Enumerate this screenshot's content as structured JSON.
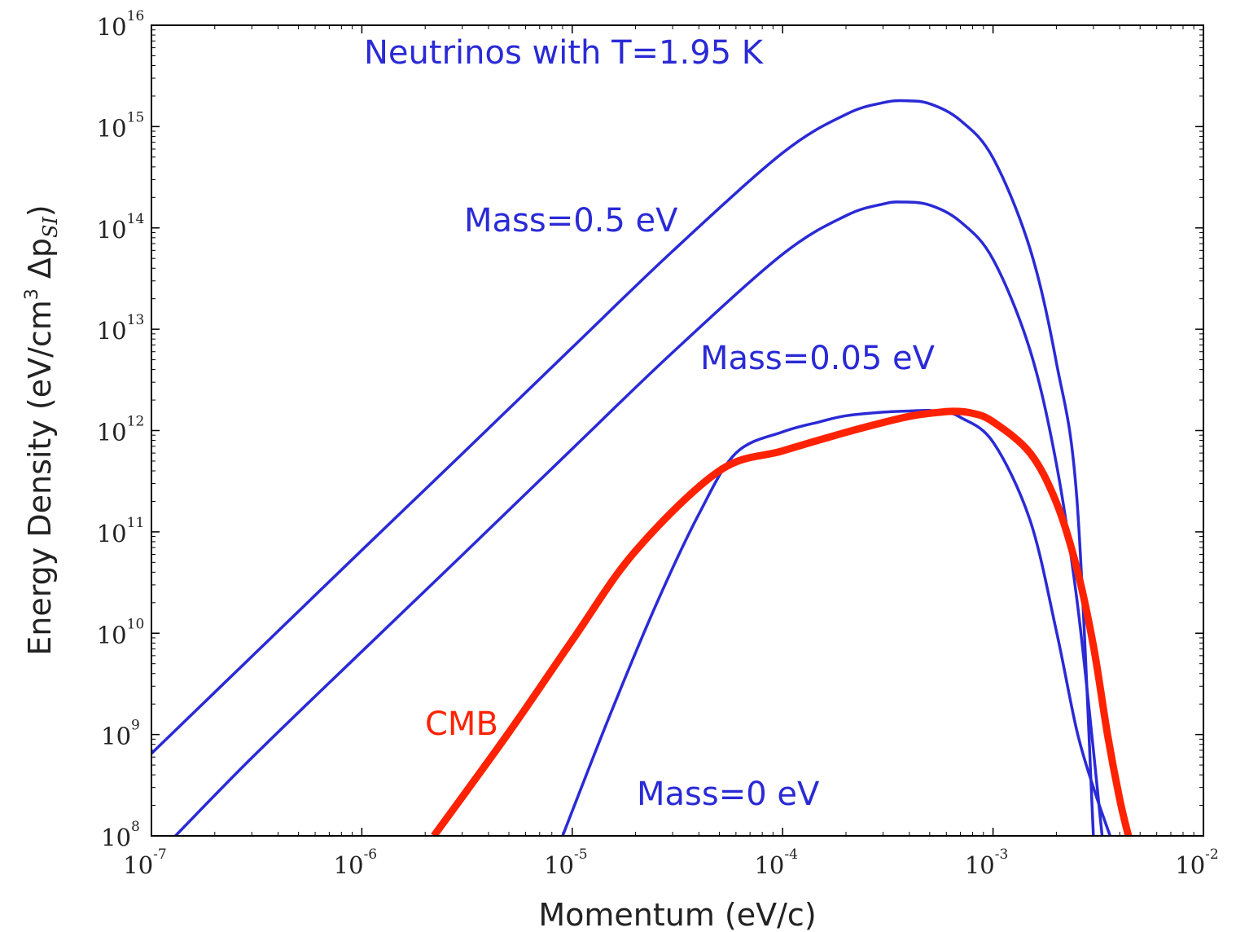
{
  "chart_data": {
    "type": "line",
    "title": "",
    "xlabel": "Momentum (eV/c)",
    "ylabel_main": "Energy Density (eV/cm",
    "ylabel_sup": "3",
    "ylabel_delta": " Δp",
    "ylabel_sub": "SI",
    "ylabel_end": ")",
    "x_scale": "log",
    "y_scale": "log",
    "xlim": [
      1e-07,
      0.01
    ],
    "ylim": [
      100000000.0,
      1e+16
    ],
    "grid": false,
    "x_ticks": [
      {
        "base": "10",
        "exp": "-7",
        "value": 1e-07
      },
      {
        "base": "10",
        "exp": "-6",
        "value": 1e-06
      },
      {
        "base": "10",
        "exp": "-5",
        "value": 1e-05
      },
      {
        "base": "10",
        "exp": "-4",
        "value": 0.0001
      },
      {
        "base": "10",
        "exp": "-3",
        "value": 0.001
      },
      {
        "base": "10",
        "exp": "-2",
        "value": 0.01
      }
    ],
    "y_ticks": [
      {
        "base": "10",
        "exp": "8",
        "value": 100000000.0
      },
      {
        "base": "10",
        "exp": "9",
        "value": 1000000000.0
      },
      {
        "base": "10",
        "exp": "10",
        "value": 10000000000.0
      },
      {
        "base": "10",
        "exp": "11",
        "value": 100000000000.0
      },
      {
        "base": "10",
        "exp": "12",
        "value": 1000000000000.0
      },
      {
        "base": "10",
        "exp": "13",
        "value": 10000000000000.0
      },
      {
        "base": "10",
        "exp": "14",
        "value": 100000000000000.0
      },
      {
        "base": "10",
        "exp": "15",
        "value": 1000000000000000.0
      },
      {
        "base": "10",
        "exp": "16",
        "value": 1e+16
      }
    ],
    "series": [
      {
        "name": "Mass=0.5 eV",
        "color": "#2a2ad6",
        "width": "thin",
        "x": [
          1e-07,
          3e-07,
          1e-06,
          3e-06,
          1e-05,
          3e-05,
          0.0001,
          0.0002,
          0.0003,
          0.00038,
          0.0005,
          0.0007,
          0.001,
          0.0015,
          0.002,
          0.0025,
          0.003
        ],
        "y": [
          650000000.0,
          5900000000.0,
          66000000000.0,
          590000000000.0,
          6600000000000.0,
          59000000000000.0,
          550000000000000.0,
          1320000000000000.0,
          1720000000000000.0,
          1800000000000000.0,
          1680000000000000.0,
          1150000000000000.0,
          490000000000000.0,
          62000000000000.0,
          4700000000000.0,
          220000000000.0,
          100000000.0
        ]
      },
      {
        "name": "Mass=0.05 eV",
        "color": "#2a2ad6",
        "width": "thin",
        "x": [
          1.3e-07,
          3e-07,
          1e-06,
          3e-06,
          1e-05,
          3e-05,
          0.0001,
          0.0002,
          0.0003,
          0.00037,
          0.0005,
          0.0007,
          0.001,
          0.0015,
          0.002,
          0.0025,
          0.003,
          0.0033
        ],
        "y": [
          100000000.0,
          590000000.0,
          6600000000.0,
          59000000000.0,
          660000000000.0,
          5900000000000.0,
          55000000000000.0,
          132000000000000.0,
          172000000000000.0,
          180000000000000.0,
          168000000000000.0,
          115000000000000.0,
          49000000000000.0,
          6200000000000.0,
          470000000000.0,
          22000000000.0,
          700000000.0,
          100000000.0
        ]
      },
      {
        "name": "Mass=0 eV",
        "color": "#2a2ad6",
        "width": "thin",
        "x": [
          9e-06,
          1.5e-05,
          2.5e-05,
          4e-05,
          6e-05,
          0.0001,
          0.00015,
          0.0002,
          0.0003,
          0.0004,
          0.0005,
          0.0006,
          0.0007,
          0.001,
          0.0015,
          0.002,
          0.0025,
          0.003,
          0.0036
        ],
        "y": [
          100000000.0,
          1500000000.0,
          19000000000.0,
          150000000000.0,
          600000000000.0,
          970000000000.0,
          1220000000000.0,
          1400000000000.0,
          1520000000000.0,
          1560000000000.0,
          1580000000000.0,
          1500000000000.0,
          1350000000000.0,
          770000000000.0,
          130000000000.0,
          10500000000.0,
          1100000000.0,
          300000000.0,
          100000000.0
        ]
      },
      {
        "name": "CMB",
        "color": "#ff2200",
        "width": "thick",
        "x": [
          2.2e-06,
          5e-06,
          1e-05,
          2e-05,
          5e-05,
          0.0001,
          0.0002,
          0.0003,
          0.0004,
          0.0005,
          0.00065,
          0.0008,
          0.001,
          0.0015,
          0.002,
          0.0025,
          0.003,
          0.0035,
          0.004,
          0.0044
        ],
        "y": [
          100000000.0,
          1050000000.0,
          8500000000.0,
          65000000000.0,
          400000000000.0,
          630000000000.0,
          960000000000.0,
          1200000000000.0,
          1380000000000.0,
          1480000000000.0,
          1550000000000.0,
          1480000000000.0,
          1220000000000.0,
          600000000000.0,
          195000000000.0,
          44000000000.0,
          7500000000.0,
          1000000000.0,
          230000000.0,
          100000000.0
        ]
      }
    ],
    "annotations": [
      {
        "text": "Neutrinos with T=1.95 K",
        "color": "#2a2ad6"
      },
      {
        "text": "Mass=0.5 eV",
        "color": "#2a2ad6"
      },
      {
        "text": "Mass=0.05 eV",
        "color": "#2a2ad6"
      },
      {
        "text": "Mass=0 eV",
        "color": "#2a2ad6"
      },
      {
        "text": "CMB",
        "color": "#ff2200"
      }
    ]
  }
}
